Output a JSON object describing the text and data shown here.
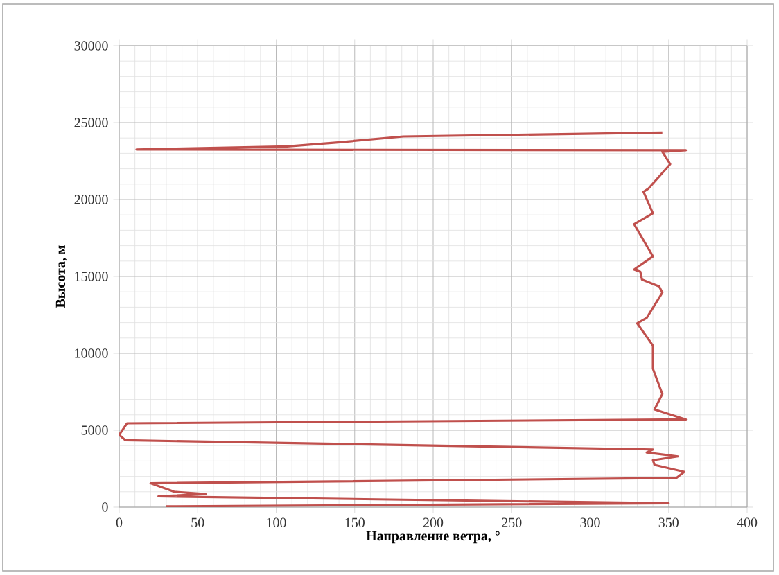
{
  "chart_data": {
    "type": "line",
    "xlabel": "Направление ветра, °",
    "ylabel": "Высота, м",
    "x": [
      30,
      350,
      25,
      55,
      35,
      20,
      355,
      360,
      341,
      340,
      356,
      336,
      340,
      4,
      0,
      5,
      361,
      341,
      346,
      340,
      340,
      330,
      336,
      346,
      344,
      333,
      332,
      328,
      340,
      328,
      340,
      334,
      337,
      351,
      346,
      361,
      11,
      107,
      138,
      181,
      346
    ],
    "values": [
      50,
      250,
      700,
      850,
      1000,
      1550,
      1900,
      2300,
      2750,
      3050,
      3300,
      3550,
      3750,
      4350,
      4700,
      5450,
      5700,
      6350,
      7350,
      9000,
      10500,
      11950,
      12300,
      13950,
      14350,
      14800,
      15300,
      15450,
      16300,
      18400,
      19100,
      20500,
      20700,
      22300,
      23100,
      23200,
      23250,
      23450,
      23700,
      24100,
      24350
    ],
    "color": "#c0504d",
    "xlim": [
      0,
      400
    ],
    "ylim": [
      0,
      30000
    ],
    "xticks": [
      0,
      50,
      100,
      150,
      200,
      250,
      300,
      350,
      400
    ],
    "yticks": [
      0,
      5000,
      10000,
      15000,
      20000,
      25000,
      30000
    ],
    "grid": true,
    "marker": "none",
    "line_style": "solid"
  }
}
